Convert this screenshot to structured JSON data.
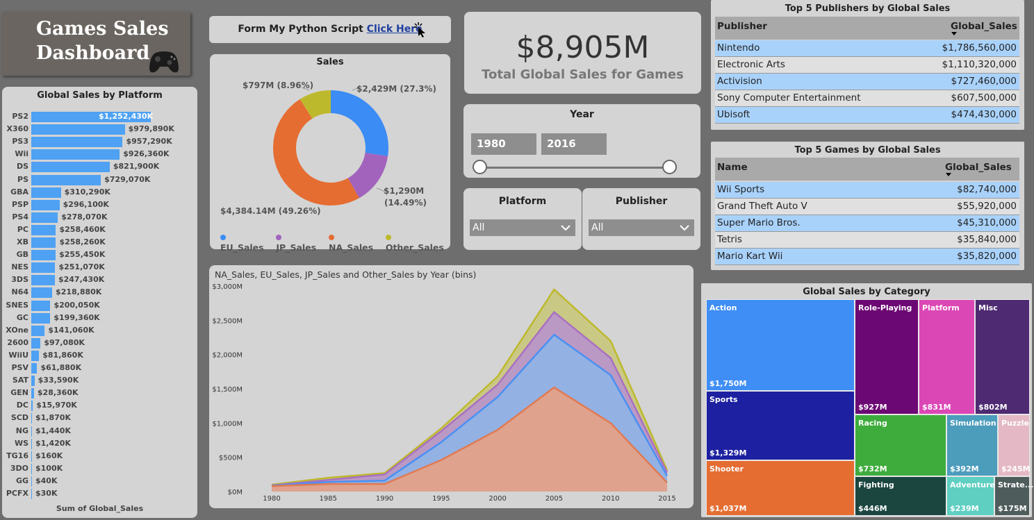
{
  "title": {
    "line1": "Games Sales",
    "line2": "Dashboard",
    "icon": "gamepad-icon"
  },
  "python_link": {
    "prefix": "Form My Python Script",
    "link": "Click Here",
    "icon": "cursor-click-icon"
  },
  "total": {
    "value": "$8,905M",
    "caption": "Total Global Sales for Games"
  },
  "year_slicer": {
    "title": "Year",
    "start": "1980",
    "end": "2016"
  },
  "platform_slicer": {
    "title": "Platform",
    "value": "All"
  },
  "publisher_slicer": {
    "title": "Publisher",
    "value": "All"
  },
  "platform_chart": {
    "title": "Global Sales by Platform",
    "footer": "Sum of Global_Sales",
    "labels": [
      "$1,252,430K",
      "$979,890K",
      "$957,290K",
      "$926,360K",
      "$821,900K",
      "$729,070K",
      "$310,290K",
      "$296,100K",
      "$278,070K",
      "$258,460K",
      "$258,260K",
      "$255,450K",
      "$251,070K",
      "$247,430K",
      "$218,880K",
      "$200,050K",
      "$199,360K",
      "$141,060K",
      "$97,080K",
      "$81,860K",
      "$61,880K",
      "$33,590K",
      "$28,360K",
      "$15,970K",
      "$1,870K",
      "$1,440K",
      "$1,420K",
      "$160K",
      "$100K",
      "$40K",
      "$30K"
    ]
  },
  "sales_chart": {
    "title": "Sales",
    "labels": {
      "eu": "$2,429M (27.3%)",
      "jp_1": "$1,290M",
      "jp_2": "(14.49%)",
      "na": "$4,384.14M (49.26%)",
      "other": "$797M (8.96%)"
    },
    "legend": [
      "EU_Sales",
      "JP_Sales",
      "NA_Sales",
      "Other_Sales"
    ]
  },
  "area_chart": {
    "title": "NA_Sales, EU_Sales, JP_Sales and Other_Sales by Year (bins)",
    "y_ticks": [
      "$0M",
      "$500M",
      "$1,000M",
      "$1,500M",
      "$2,000M",
      "$2,500M",
      "$3,000M"
    ],
    "x_ticks": [
      "1980",
      "1985",
      "1990",
      "1995",
      "2000",
      "2005",
      "2010",
      "2015"
    ]
  },
  "publishers_table": {
    "title": "Top 5 Publishers by Global Sales",
    "col1": "Publisher",
    "col2": "Global_Sales",
    "rows": [
      {
        "name": "Nintendo",
        "value": "$1,786,560,000"
      },
      {
        "name": "Electronic Arts",
        "value": "$1,110,320,000"
      },
      {
        "name": "Activision",
        "value": "$727,460,000"
      },
      {
        "name": "Sony Computer Entertainment",
        "value": "$607,500,000"
      },
      {
        "name": "Ubisoft",
        "value": "$474,430,000"
      }
    ]
  },
  "games_table": {
    "title": "Top 5 Games by Global Sales",
    "col1": "Name",
    "col2": "Global_Sales",
    "rows": [
      {
        "name": "Wii Sports",
        "value": "$82,740,000"
      },
      {
        "name": "Grand Theft Auto V",
        "value": "$55,920,000"
      },
      {
        "name": "Super Mario Bros.",
        "value": "$45,310,000"
      },
      {
        "name": "Tetris",
        "value": "$35,840,000"
      },
      {
        "name": "Mario Kart Wii",
        "value": "$35,820,000"
      }
    ]
  },
  "treemap": {
    "title": "Global Sales by Category",
    "tiles": [
      {
        "name": "Action",
        "value": "$1,750M",
        "color": "#3f8ef5"
      },
      {
        "name": "Sports",
        "value": "$1,329M",
        "color": "#1d20a0"
      },
      {
        "name": "Shooter",
        "value": "$1,037M",
        "color": "#e56d32"
      },
      {
        "name": "Role-Playing",
        "value": "$927M",
        "color": "#6c0873"
      },
      {
        "name": "Platform",
        "value": "$831M",
        "color": "#dc47b6"
      },
      {
        "name": "Misc",
        "value": "$802M",
        "color": "#4e2a72"
      },
      {
        "name": "Racing",
        "value": "$732M",
        "color": "#3eac3d"
      },
      {
        "name": "Simulation",
        "value": "$392M",
        "color": "#4c9cbc"
      },
      {
        "name": "Puzzle",
        "value": "$245M",
        "color": "#e4b8c4"
      },
      {
        "name": "Fighting",
        "value": "$446M",
        "color": "#1b4640"
      },
      {
        "name": "Adventure",
        "value": "$239M",
        "color": "#5ecfc1"
      },
      {
        "name": "Strate...",
        "value": "$175M",
        "color": "#4f5c5c"
      }
    ]
  },
  "chart_data": [
    {
      "type": "bar",
      "title": "Global Sales by Platform",
      "orientation": "horizontal",
      "xlabel": "Sum of Global_Sales",
      "categories": [
        "PS2",
        "X360",
        "PS3",
        "Wii",
        "DS",
        "PS",
        "GBA",
        "PSP",
        "PS4",
        "PC",
        "XB",
        "GB",
        "NES",
        "3DS",
        "N64",
        "SNES",
        "GC",
        "XOne",
        "2600",
        "WiiU",
        "PSV",
        "SAT",
        "GEN",
        "DC",
        "SCD",
        "NG",
        "WS",
        "TG16",
        "3DO",
        "GG",
        "PCFX"
      ],
      "values": [
        1252430,
        979890,
        957290,
        926360,
        821900,
        729070,
        310290,
        296100,
        278070,
        258460,
        258260,
        255450,
        251070,
        247430,
        218880,
        200050,
        199360,
        141060,
        97080,
        81860,
        61880,
        33590,
        28360,
        15970,
        1870,
        1440,
        1420,
        160,
        100,
        40,
        30
      ],
      "unit": "K",
      "color": "#4ea1f3"
    },
    {
      "type": "pie",
      "title": "Sales",
      "donut": true,
      "categories": [
        "EU_Sales",
        "JP_Sales",
        "NA_Sales",
        "Other_Sales"
      ],
      "values": [
        2429,
        1290,
        4384.14,
        797
      ],
      "percents": [
        27.3,
        14.49,
        49.26,
        8.96
      ],
      "colors": [
        "#3b8cf5",
        "#a263bd",
        "#e56d32",
        "#bdb92c"
      ],
      "legend": "bottom"
    },
    {
      "type": "area",
      "title": "NA_Sales, EU_Sales, JP_Sales and Other_Sales by Year (bins)",
      "x": [
        1980,
        1985,
        1990,
        1995,
        2000,
        2005,
        2010,
        2015
      ],
      "ylim": [
        0,
        3000
      ],
      "stacked": true,
      "series": [
        {
          "name": "NA_Sales",
          "color": "#e07a52",
          "values": [
            80,
            110,
            110,
            460,
            900,
            1520,
            1000,
            130
          ]
        },
        {
          "name": "EU_Sales",
          "color": "#4a90f2",
          "values": [
            85,
            140,
            160,
            720,
            1380,
            2290,
            1700,
            230
          ]
        },
        {
          "name": "JP_Sales",
          "color": "#a870c2",
          "values": [
            90,
            170,
            250,
            880,
            1560,
            2620,
            1950,
            280
          ]
        },
        {
          "name": "Other_Sales",
          "color": "#bdb92c",
          "values": [
            100,
            200,
            270,
            920,
            1680,
            2950,
            2200,
            310
          ]
        }
      ]
    }
  ]
}
